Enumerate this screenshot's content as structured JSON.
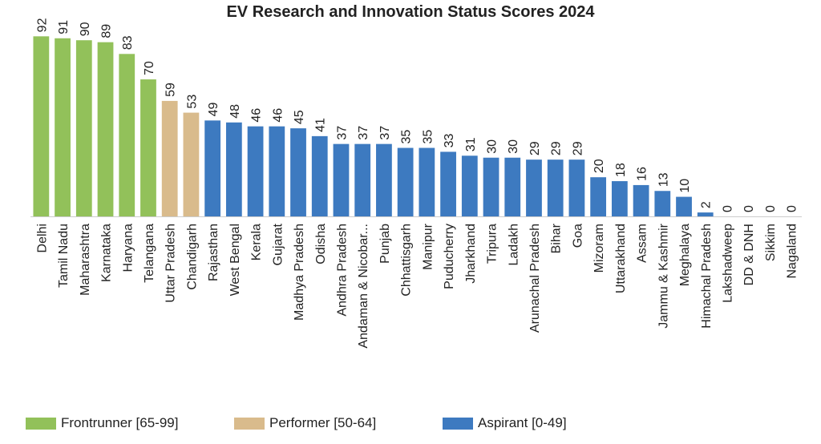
{
  "chart_data": {
    "type": "bar",
    "title": "EV Research and Innovation Status Scores 2024",
    "xlabel": "",
    "ylabel": "",
    "ylim": [
      0,
      95
    ],
    "grid": false,
    "legend_position": "bottom",
    "categories": [
      "Delhi",
      "Tamil Nadu",
      "Maharashtra",
      "Karnataka",
      "Haryana",
      "Telangana",
      "Uttar Pradesh",
      "Chandigarh",
      "Rajasthan",
      "West Bengal",
      "Kerala",
      "Gujarat",
      "Madhya Pradesh",
      "Odisha",
      "Andhra Pradesh",
      "Andaman & Nicobar...",
      "Punjab",
      "Chhattisgarh",
      "Manipur",
      "Puducherry",
      "Jharkhand",
      "Tripura",
      "Ladakh",
      "Arunachal Pradesh",
      "Bihar",
      "Goa",
      "Mizoram",
      "Uttarakhand",
      "Assam",
      "Jammu & Kashmir",
      "Meghalaya",
      "Himachal Pradesh",
      "Lakshadweep",
      "DD & DNH",
      "Sikkim",
      "Nagaland"
    ],
    "values": [
      92,
      91,
      90,
      89,
      83,
      70,
      59,
      53,
      49,
      48,
      46,
      46,
      45,
      41,
      37,
      37,
      37,
      35,
      35,
      33,
      31,
      30,
      30,
      29,
      29,
      29,
      20,
      18,
      16,
      13,
      10,
      2,
      0,
      0,
      0,
      0
    ],
    "groups": [
      "frontrunner",
      "frontrunner",
      "frontrunner",
      "frontrunner",
      "frontrunner",
      "frontrunner",
      "performer",
      "performer",
      "aspirant",
      "aspirant",
      "aspirant",
      "aspirant",
      "aspirant",
      "aspirant",
      "aspirant",
      "aspirant",
      "aspirant",
      "aspirant",
      "aspirant",
      "aspirant",
      "aspirant",
      "aspirant",
      "aspirant",
      "aspirant",
      "aspirant",
      "aspirant",
      "aspirant",
      "aspirant",
      "aspirant",
      "aspirant",
      "aspirant",
      "aspirant",
      "aspirant",
      "aspirant",
      "aspirant",
      "aspirant"
    ],
    "legend": [
      {
        "key": "frontrunner",
        "label": "Frontrunner [65-99]",
        "color": "#92c15a"
      },
      {
        "key": "performer",
        "label": "Performer [50-64]",
        "color": "#d9bb8c"
      },
      {
        "key": "aspirant",
        "label": "Aspirant [0-49]",
        "color": "#3d7ac0"
      }
    ]
  }
}
